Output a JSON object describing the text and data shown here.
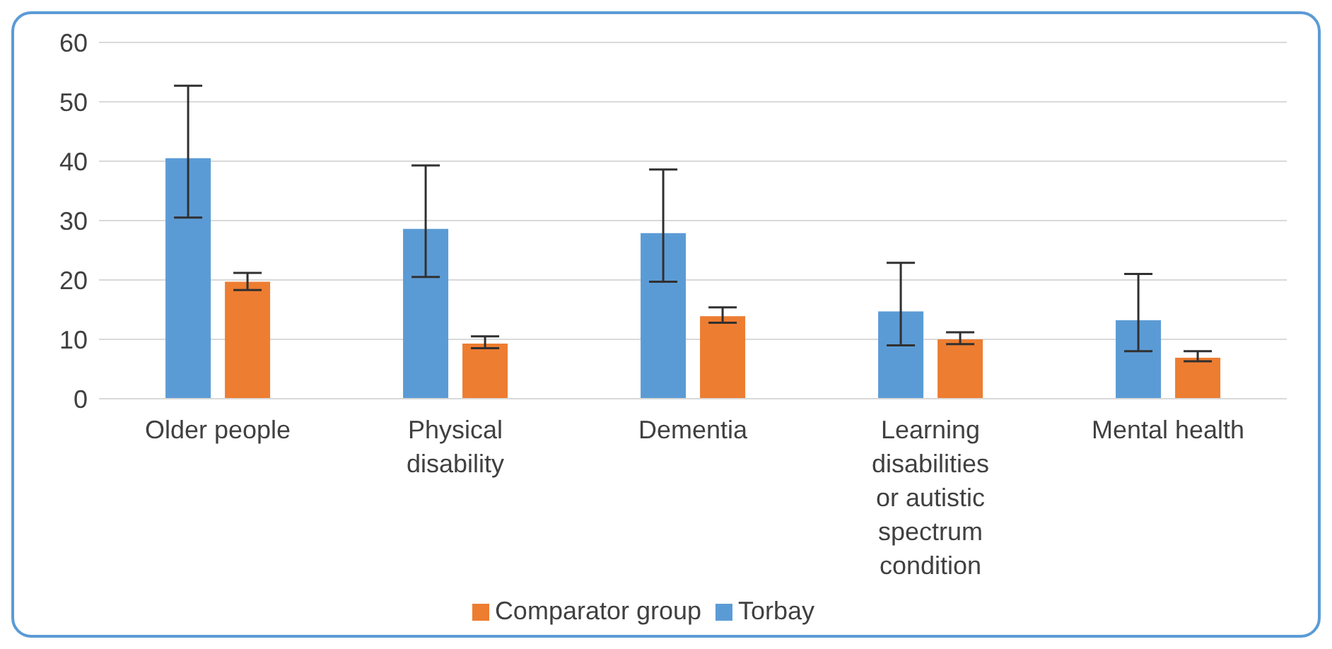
{
  "chart_data": {
    "type": "bar",
    "categories": [
      "Older people",
      "Physical disability",
      "Dementia",
      "Learning disabilities or autistic spectrum condition",
      "Mental health"
    ],
    "series": [
      {
        "name": "Torbay",
        "color": "#5b9bd5",
        "values": [
          40.5,
          28.6,
          27.9,
          14.7,
          13.2
        ],
        "errors": [
          [
            30.5,
            52.7
          ],
          [
            20.5,
            39.3
          ],
          [
            19.7,
            38.6
          ],
          [
            9.0,
            22.9
          ],
          [
            8.0,
            21.0
          ]
        ]
      },
      {
        "name": "Comparator group",
        "color": "#ed7d31",
        "values": [
          19.7,
          9.3,
          13.9,
          10.0,
          6.9
        ],
        "errors": [
          [
            18.3,
            21.2
          ],
          [
            8.5,
            10.5
          ],
          [
            12.8,
            15.4
          ],
          [
            9.2,
            11.2
          ],
          [
            6.3,
            8.0
          ]
        ]
      }
    ],
    "ylim": [
      0,
      60
    ],
    "yticks": [
      0,
      10,
      20,
      30,
      40,
      50,
      60
    ],
    "grid": "y",
    "legend": "bottom"
  }
}
